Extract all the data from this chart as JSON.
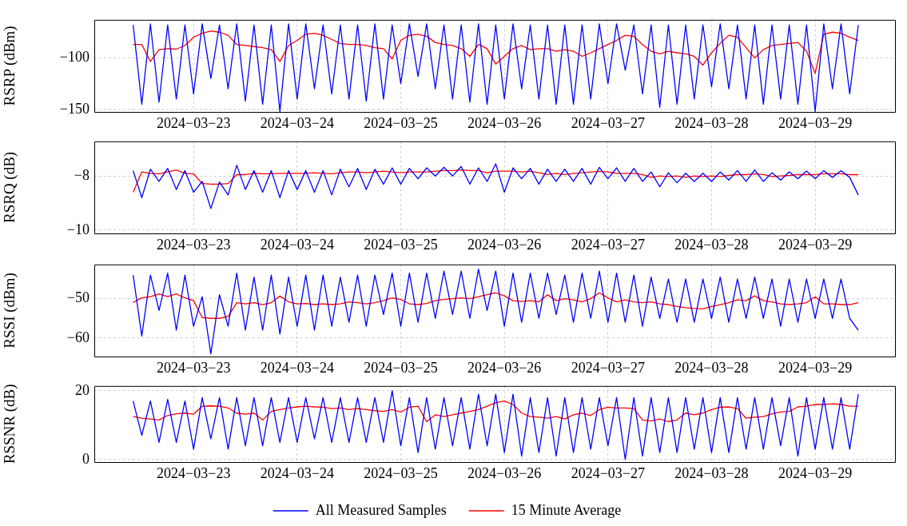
{
  "chart_data": [
    {
      "type": "line",
      "ylabel": "RSRP (dBm)",
      "marker": "none",
      "grid": true,
      "x": [
        "2024-03-22T10:00",
        "2024-03-22T12:00",
        "2024-03-22T14:00",
        "2024-03-22T16:00",
        "2024-03-22T18:00",
        "2024-03-22T20:00",
        "2024-03-22T22:00",
        "2024-03-23T00:00",
        "2024-03-23T02:00",
        "2024-03-23T04:00",
        "2024-03-23T06:00",
        "2024-03-23T08:00",
        "2024-03-23T10:00",
        "2024-03-23T12:00",
        "2024-03-23T14:00",
        "2024-03-23T16:00",
        "2024-03-23T18:00",
        "2024-03-23T20:00",
        "2024-03-23T22:00",
        "2024-03-24T00:00",
        "2024-03-24T02:00",
        "2024-03-24T04:00",
        "2024-03-24T06:00",
        "2024-03-24T08:00",
        "2024-03-24T10:00",
        "2024-03-24T12:00",
        "2024-03-24T14:00",
        "2024-03-24T16:00",
        "2024-03-24T18:00",
        "2024-03-24T20:00",
        "2024-03-24T22:00",
        "2024-03-25T00:00",
        "2024-03-25T02:00",
        "2024-03-25T04:00",
        "2024-03-25T06:00",
        "2024-03-25T08:00",
        "2024-03-25T10:00",
        "2024-03-25T12:00",
        "2024-03-25T14:00",
        "2024-03-25T16:00",
        "2024-03-25T18:00",
        "2024-03-25T20:00",
        "2024-03-25T22:00",
        "2024-03-26T00:00",
        "2024-03-26T02:00",
        "2024-03-26T04:00",
        "2024-03-26T06:00",
        "2024-03-26T08:00",
        "2024-03-26T10:00",
        "2024-03-26T12:00",
        "2024-03-26T14:00",
        "2024-03-26T16:00",
        "2024-03-26T18:00",
        "2024-03-26T20:00",
        "2024-03-26T22:00",
        "2024-03-27T00:00",
        "2024-03-27T02:00",
        "2024-03-27T04:00",
        "2024-03-27T06:00",
        "2024-03-27T08:00",
        "2024-03-27T10:00",
        "2024-03-27T12:00",
        "2024-03-27T14:00",
        "2024-03-27T16:00",
        "2024-03-27T18:00",
        "2024-03-27T20:00",
        "2024-03-27T22:00",
        "2024-03-28T00:00",
        "2024-03-28T02:00",
        "2024-03-28T04:00",
        "2024-03-28T06:00",
        "2024-03-28T08:00",
        "2024-03-28T10:00",
        "2024-03-28T12:00",
        "2024-03-28T14:00",
        "2024-03-28T16:00",
        "2024-03-28T18:00",
        "2024-03-28T20:00",
        "2024-03-28T22:00",
        "2024-03-29T00:00",
        "2024-03-29T02:00",
        "2024-03-29T04:00",
        "2024-03-29T06:00",
        "2024-03-29T08:00",
        "2024-03-29T10:00"
      ],
      "xlim": [
        "2024-03-22T01:00",
        "2024-03-29T18:30"
      ],
      "xticks": [
        {
          "value": "2024-03-23",
          "label": "2024−03−23"
        },
        {
          "value": "2024-03-24",
          "label": "2024−03−24"
        },
        {
          "value": "2024-03-25",
          "label": "2024−03−25"
        },
        {
          "value": "2024-03-26",
          "label": "2024−03−26"
        },
        {
          "value": "2024-03-27",
          "label": "2024−03−27"
        },
        {
          "value": "2024-03-28",
          "label": "2024−03−28"
        },
        {
          "value": "2024-03-29",
          "label": "2024−03−29"
        }
      ],
      "ylim": [
        -152.5,
        -63
      ],
      "yticks": [
        {
          "value": -150,
          "label": "−150"
        },
        {
          "value": -100,
          "label": "−100"
        }
      ],
      "series": [
        {
          "color": "#0000ff",
          "values": [
            -68,
            -145,
            -67,
            -143,
            -68,
            -140,
            -68,
            -135,
            -67,
            -120,
            -68,
            -130,
            -67,
            -142,
            -68,
            -145,
            -68,
            -152,
            -67,
            -140,
            -67,
            -130,
            -68,
            -135,
            -68,
            -140,
            -68,
            -142,
            -67,
            -140,
            -68,
            -125,
            -67,
            -118,
            -67,
            -130,
            -68,
            -140,
            -68,
            -143,
            -67,
            -145,
            -68,
            -140,
            -67,
            -130,
            -68,
            -140,
            -68,
            -145,
            -68,
            -145,
            -68,
            -140,
            -67,
            -125,
            -67,
            -112,
            -68,
            -135,
            -68,
            -148,
            -68,
            -145,
            -68,
            -140,
            -68,
            -128,
            -67,
            -130,
            -68,
            -140,
            -68,
            -145,
            -68,
            -140,
            -68,
            -145,
            -68,
            -152,
            -67,
            -130,
            -67,
            -135,
            -68
          ]
        },
        {
          "color": "#ff0000",
          "values": [
            -87,
            -87,
            -103.5,
            -92,
            -91,
            -91.5,
            -88,
            -80,
            -76,
            -74,
            -75,
            -78,
            -87,
            -88,
            -89,
            -90,
            -92,
            -103.5,
            -88,
            -83,
            -77,
            -76,
            -78,
            -82,
            -86,
            -87,
            -87,
            -88,
            -90,
            -91,
            -101,
            -83,
            -78,
            -77,
            -79,
            -85,
            -87,
            -88,
            -91,
            -98.5,
            -87,
            -91,
            -106,
            -98.5,
            -91,
            -88,
            -92,
            -91,
            -91,
            -93.5,
            -92,
            -93.5,
            -98.5,
            -95,
            -91,
            -87,
            -83,
            -78,
            -79,
            -87,
            -93.5,
            -96,
            -93.5,
            -95,
            -96,
            -98.5,
            -107,
            -95,
            -86,
            -78,
            -80,
            -90,
            -100,
            -92,
            -88,
            -87,
            -86,
            -85,
            -93.5,
            -115,
            -77,
            -75,
            -76,
            -80,
            -83
          ]
        }
      ]
    },
    {
      "type": "line",
      "ylabel": "RSRQ (dB)",
      "marker": "none",
      "grid": true,
      "x": [
        "2024-03-22T10:00",
        "2024-03-22T12:00",
        "2024-03-22T14:00",
        "2024-03-22T16:00",
        "2024-03-22T18:00",
        "2024-03-22T20:00",
        "2024-03-22T22:00",
        "2024-03-23T00:00",
        "2024-03-23T02:00",
        "2024-03-23T04:00",
        "2024-03-23T06:00",
        "2024-03-23T08:00",
        "2024-03-23T10:00",
        "2024-03-23T12:00",
        "2024-03-23T14:00",
        "2024-03-23T16:00",
        "2024-03-23T18:00",
        "2024-03-23T20:00",
        "2024-03-23T22:00",
        "2024-03-24T00:00",
        "2024-03-24T02:00",
        "2024-03-24T04:00",
        "2024-03-24T06:00",
        "2024-03-24T08:00",
        "2024-03-24T10:00",
        "2024-03-24T12:00",
        "2024-03-24T14:00",
        "2024-03-24T16:00",
        "2024-03-24T18:00",
        "2024-03-24T20:00",
        "2024-03-24T22:00",
        "2024-03-25T00:00",
        "2024-03-25T02:00",
        "2024-03-25T04:00",
        "2024-03-25T06:00",
        "2024-03-25T08:00",
        "2024-03-25T10:00",
        "2024-03-25T12:00",
        "2024-03-25T14:00",
        "2024-03-25T16:00",
        "2024-03-25T18:00",
        "2024-03-25T20:00",
        "2024-03-25T22:00",
        "2024-03-26T00:00",
        "2024-03-26T02:00",
        "2024-03-26T04:00",
        "2024-03-26T06:00",
        "2024-03-26T08:00",
        "2024-03-26T10:00",
        "2024-03-26T12:00",
        "2024-03-26T14:00",
        "2024-03-26T16:00",
        "2024-03-26T18:00",
        "2024-03-26T20:00",
        "2024-03-26T22:00",
        "2024-03-27T00:00",
        "2024-03-27T02:00",
        "2024-03-27T04:00",
        "2024-03-27T06:00",
        "2024-03-27T08:00",
        "2024-03-27T10:00",
        "2024-03-27T12:00",
        "2024-03-27T14:00",
        "2024-03-27T16:00",
        "2024-03-27T18:00",
        "2024-03-27T20:00",
        "2024-03-27T22:00",
        "2024-03-28T00:00",
        "2024-03-28T02:00",
        "2024-03-28T04:00",
        "2024-03-28T06:00",
        "2024-03-28T08:00",
        "2024-03-28T10:00",
        "2024-03-28T12:00",
        "2024-03-28T14:00",
        "2024-03-28T16:00",
        "2024-03-28T18:00",
        "2024-03-28T20:00",
        "2024-03-28T22:00",
        "2024-03-29T00:00",
        "2024-03-29T02:00",
        "2024-03-29T04:00",
        "2024-03-29T06:00",
        "2024-03-29T08:00",
        "2024-03-29T10:00"
      ],
      "xlim": [
        "2024-03-22T01:00",
        "2024-03-29T18:30"
      ],
      "xticks": [
        {
          "value": "2024-03-23",
          "label": "2024−03−23"
        },
        {
          "value": "2024-03-24",
          "label": "2024−03−24"
        },
        {
          "value": "2024-03-25",
          "label": "2024−03−25"
        },
        {
          "value": "2024-03-26",
          "label": "2024−03−26"
        },
        {
          "value": "2024-03-27",
          "label": "2024−03−27"
        },
        {
          "value": "2024-03-28",
          "label": "2024−03−28"
        },
        {
          "value": "2024-03-29",
          "label": "2024−03−29"
        }
      ],
      "ylim": [
        -10.12,
        -6.72
      ],
      "yticks": [
        {
          "value": -10,
          "label": "−10"
        },
        {
          "value": -8,
          "label": "−8"
        }
      ],
      "series": [
        {
          "color": "#0000ff",
          "values": [
            -7.8,
            -8.8,
            -7.75,
            -8.2,
            -7.72,
            -8.5,
            -7.8,
            -8.6,
            -8.2,
            -9.2,
            -8.22,
            -8.7,
            -7.6,
            -8.5,
            -7.8,
            -8.6,
            -7.8,
            -8.8,
            -7.8,
            -8.5,
            -7.8,
            -8.6,
            -7.8,
            -8.7,
            -7.75,
            -8.4,
            -7.72,
            -8.5,
            -7.75,
            -8.3,
            -7.7,
            -8.3,
            -7.72,
            -8.1,
            -7.7,
            -8,
            -7.68,
            -8,
            -7.65,
            -8.3,
            -7.7,
            -8.2,
            -7.55,
            -8.6,
            -7.7,
            -8.1,
            -7.72,
            -8.3,
            -7.75,
            -8.2,
            -7.75,
            -8.2,
            -7.72,
            -8.3,
            -7.68,
            -8.1,
            -7.7,
            -8.2,
            -7.72,
            -8.2,
            -7.85,
            -8.4,
            -7.88,
            -8.25,
            -7.9,
            -8.2,
            -7.9,
            -8.2,
            -7.85,
            -8.15,
            -7.8,
            -8.2,
            -7.78,
            -8.2,
            -7.88,
            -8.15,
            -7.85,
            -8.1,
            -7.82,
            -8.1,
            -7.8,
            -8.05,
            -7.8,
            -8.05,
            -8.7
          ]
        },
        {
          "color": "#ff0000",
          "values": [
            -8.6,
            -7.85,
            -7.9,
            -7.92,
            -7.85,
            -7.78,
            -7.9,
            -7.92,
            -8.28,
            -8.3,
            -8.3,
            -8.28,
            -7.95,
            -7.95,
            -7.9,
            -7.92,
            -7.92,
            -7.9,
            -7.9,
            -7.9,
            -7.9,
            -7.88,
            -7.9,
            -7.92,
            -7.88,
            -7.85,
            -7.85,
            -7.88,
            -7.85,
            -7.82,
            -7.85,
            -7.88,
            -7.85,
            -7.85,
            -7.85,
            -7.82,
            -7.8,
            -7.8,
            -7.78,
            -7.8,
            -7.8,
            -7.88,
            -7.82,
            -7.82,
            -7.82,
            -7.85,
            -7.82,
            -7.88,
            -7.95,
            -7.9,
            -7.95,
            -7.9,
            -7.88,
            -7.85,
            -7.83,
            -7.85,
            -7.9,
            -7.9,
            -7.9,
            -7.95,
            -8.05,
            -8,
            -8.02,
            -8,
            -8.05,
            -8,
            -8.02,
            -8,
            -8.02,
            -7.98,
            -7.95,
            -7.95,
            -7.92,
            -7.95,
            -8.02,
            -8,
            -7.98,
            -7.95,
            -7.95,
            -7.95,
            -7.92,
            -7.92,
            -7.92,
            -7.95,
            -7.95
          ]
        }
      ]
    },
    {
      "type": "line",
      "ylabel": "RSSI (dBm)",
      "marker": "none",
      "grid": true,
      "x": [
        "2024-03-22T10:00",
        "2024-03-22T12:00",
        "2024-03-22T14:00",
        "2024-03-22T16:00",
        "2024-03-22T18:00",
        "2024-03-22T20:00",
        "2024-03-22T22:00",
        "2024-03-23T00:00",
        "2024-03-23T02:00",
        "2024-03-23T04:00",
        "2024-03-23T06:00",
        "2024-03-23T08:00",
        "2024-03-23T10:00",
        "2024-03-23T12:00",
        "2024-03-23T14:00",
        "2024-03-23T16:00",
        "2024-03-23T18:00",
        "2024-03-23T20:00",
        "2024-03-23T22:00",
        "2024-03-24T00:00",
        "2024-03-24T02:00",
        "2024-03-24T04:00",
        "2024-03-24T06:00",
        "2024-03-24T08:00",
        "2024-03-24T10:00",
        "2024-03-24T12:00",
        "2024-03-24T14:00",
        "2024-03-24T16:00",
        "2024-03-24T18:00",
        "2024-03-24T20:00",
        "2024-03-24T22:00",
        "2024-03-25T00:00",
        "2024-03-25T02:00",
        "2024-03-25T04:00",
        "2024-03-25T06:00",
        "2024-03-25T08:00",
        "2024-03-25T10:00",
        "2024-03-25T12:00",
        "2024-03-25T14:00",
        "2024-03-25T16:00",
        "2024-03-25T18:00",
        "2024-03-25T20:00",
        "2024-03-25T22:00",
        "2024-03-26T00:00",
        "2024-03-26T02:00",
        "2024-03-26T04:00",
        "2024-03-26T06:00",
        "2024-03-26T08:00",
        "2024-03-26T10:00",
        "2024-03-26T12:00",
        "2024-03-26T14:00",
        "2024-03-26T16:00",
        "2024-03-26T18:00",
        "2024-03-26T20:00",
        "2024-03-26T22:00",
        "2024-03-27T00:00",
        "2024-03-27T02:00",
        "2024-03-27T04:00",
        "2024-03-27T06:00",
        "2024-03-27T08:00",
        "2024-03-27T10:00",
        "2024-03-27T12:00",
        "2024-03-27T14:00",
        "2024-03-27T16:00",
        "2024-03-27T18:00",
        "2024-03-27T20:00",
        "2024-03-27T22:00",
        "2024-03-28T00:00",
        "2024-03-28T02:00",
        "2024-03-28T04:00",
        "2024-03-28T06:00",
        "2024-03-28T08:00",
        "2024-03-28T10:00",
        "2024-03-28T12:00",
        "2024-03-28T14:00",
        "2024-03-28T16:00",
        "2024-03-28T18:00",
        "2024-03-28T20:00",
        "2024-03-28T22:00",
        "2024-03-29T00:00",
        "2024-03-29T02:00",
        "2024-03-29T04:00",
        "2024-03-29T06:00",
        "2024-03-29T08:00",
        "2024-03-29T10:00"
      ],
      "xlim": [
        "2024-03-22T01:00",
        "2024-03-29T18:30"
      ],
      "xticks": [
        {
          "value": "2024-03-23",
          "label": "2024−03−23"
        },
        {
          "value": "2024-03-24",
          "label": "2024−03−24"
        },
        {
          "value": "2024-03-25",
          "label": "2024−03−25"
        },
        {
          "value": "2024-03-26",
          "label": "2024−03−26"
        },
        {
          "value": "2024-03-27",
          "label": "2024−03−27"
        },
        {
          "value": "2024-03-28",
          "label": "2024−03−28"
        },
        {
          "value": "2024-03-29",
          "label": "2024−03−29"
        }
      ],
      "ylim": [
        -64.7,
        -41.3
      ],
      "yticks": [
        {
          "value": -60,
          "label": "−60"
        },
        {
          "value": -50,
          "label": "−50"
        }
      ],
      "series": [
        {
          "color": "#0000ff",
          "values": [
            -44,
            -59.5,
            -44,
            -53,
            -43.5,
            -58,
            -44,
            -57,
            -49.5,
            -64,
            -49,
            -57,
            -43.5,
            -58,
            -44.5,
            -58,
            -44,
            -59,
            -44.5,
            -57,
            -44,
            -58,
            -44,
            -57,
            -44.5,
            -56,
            -44,
            -57,
            -44,
            -54,
            -43.5,
            -57,
            -43.5,
            -56,
            -43.5,
            -55,
            -43,
            -54,
            -43,
            -55,
            -42.5,
            -53,
            -43,
            -57,
            -43.5,
            -56,
            -43.5,
            -55,
            -43.5,
            -54,
            -44,
            -56,
            -43.5,
            -55,
            -43,
            -56,
            -43.5,
            -56,
            -44,
            -57,
            -44.5,
            -55,
            -45,
            -56,
            -45,
            -56,
            -45,
            -55,
            -44.5,
            -56,
            -45,
            -55,
            -44.5,
            -55,
            -45,
            -57,
            -45,
            -56,
            -45,
            -55,
            -45,
            -55,
            -45,
            -55,
            -58
          ]
        },
        {
          "color": "#ff0000",
          "values": [
            -51,
            -49.8,
            -49.5,
            -48.8,
            -49.5,
            -48.8,
            -49.8,
            -50.5,
            -54.8,
            -55,
            -55,
            -54.5,
            -51,
            -51.3,
            -51,
            -51.5,
            -51,
            -49.3,
            -50.8,
            -51.3,
            -51.2,
            -51.5,
            -51.3,
            -51.5,
            -51.3,
            -50.8,
            -51,
            -51.3,
            -51,
            -50.5,
            -49.8,
            -50.2,
            -51.3,
            -51.5,
            -51.2,
            -50.5,
            -50.2,
            -50,
            -49.8,
            -50,
            -49.5,
            -49,
            -48.5,
            -49.3,
            -50.5,
            -50.7,
            -50.5,
            -50.8,
            -49,
            -50.5,
            -50,
            -50.3,
            -50.8,
            -50,
            -48.5,
            -49.8,
            -50.8,
            -50.3,
            -50.8,
            -51,
            -50.8,
            -51.3,
            -51.5,
            -52,
            -52.3,
            -52.5,
            -52.6,
            -52,
            -51.5,
            -51,
            -50.3,
            -50.5,
            -49.3,
            -50.5,
            -50.8,
            -51.3,
            -51.5,
            -51.3,
            -51,
            -49.5,
            -51.3,
            -51.3,
            -51.5,
            -51.5,
            -51
          ]
        }
      ]
    },
    {
      "type": "line",
      "ylabel": "RSSNR (dB)",
      "marker": "none",
      "grid": true,
      "legend": "bottom",
      "x": [
        "2024-03-22T10:00",
        "2024-03-22T12:00",
        "2024-03-22T14:00",
        "2024-03-22T16:00",
        "2024-03-22T18:00",
        "2024-03-22T20:00",
        "2024-03-22T22:00",
        "2024-03-23T00:00",
        "2024-03-23T02:00",
        "2024-03-23T04:00",
        "2024-03-23T06:00",
        "2024-03-23T08:00",
        "2024-03-23T10:00",
        "2024-03-23T12:00",
        "2024-03-23T14:00",
        "2024-03-23T16:00",
        "2024-03-23T18:00",
        "2024-03-23T20:00",
        "2024-03-23T22:00",
        "2024-03-24T00:00",
        "2024-03-24T02:00",
        "2024-03-24T04:00",
        "2024-03-24T06:00",
        "2024-03-24T08:00",
        "2024-03-24T10:00",
        "2024-03-24T12:00",
        "2024-03-24T14:00",
        "2024-03-24T16:00",
        "2024-03-24T18:00",
        "2024-03-24T20:00",
        "2024-03-24T22:00",
        "2024-03-25T00:00",
        "2024-03-25T02:00",
        "2024-03-25T04:00",
        "2024-03-25T06:00",
        "2024-03-25T08:00",
        "2024-03-25T10:00",
        "2024-03-25T12:00",
        "2024-03-25T14:00",
        "2024-03-25T16:00",
        "2024-03-25T18:00",
        "2024-03-25T20:00",
        "2024-03-25T22:00",
        "2024-03-26T00:00",
        "2024-03-26T02:00",
        "2024-03-26T04:00",
        "2024-03-26T06:00",
        "2024-03-26T08:00",
        "2024-03-26T10:00",
        "2024-03-26T12:00",
        "2024-03-26T14:00",
        "2024-03-26T16:00",
        "2024-03-26T18:00",
        "2024-03-26T20:00",
        "2024-03-26T22:00",
        "2024-03-27T00:00",
        "2024-03-27T02:00",
        "2024-03-27T04:00",
        "2024-03-27T06:00",
        "2024-03-27T08:00",
        "2024-03-27T10:00",
        "2024-03-27T12:00",
        "2024-03-27T14:00",
        "2024-03-27T16:00",
        "2024-03-27T18:00",
        "2024-03-27T20:00",
        "2024-03-27T22:00",
        "2024-03-28T00:00",
        "2024-03-28T02:00",
        "2024-03-28T04:00",
        "2024-03-28T06:00",
        "2024-03-28T08:00",
        "2024-03-28T10:00",
        "2024-03-28T12:00",
        "2024-03-28T14:00",
        "2024-03-28T16:00",
        "2024-03-28T18:00",
        "2024-03-28T20:00",
        "2024-03-28T22:00",
        "2024-03-29T00:00",
        "2024-03-29T02:00",
        "2024-03-29T04:00",
        "2024-03-29T06:00",
        "2024-03-29T08:00",
        "2024-03-29T10:00"
      ],
      "xlim": [
        "2024-03-22T01:00",
        "2024-03-29T18:30"
      ],
      "xticks": [
        {
          "value": "2024-03-23",
          "label": "2024−03−23"
        },
        {
          "value": "2024-03-24",
          "label": "2024−03−24"
        },
        {
          "value": "2024-03-25",
          "label": "2024−03−25"
        },
        {
          "value": "2024-03-26",
          "label": "2024−03−26"
        },
        {
          "value": "2024-03-27",
          "label": "2024−03−27"
        },
        {
          "value": "2024-03-28",
          "label": "2024−03−28"
        },
        {
          "value": "2024-03-29",
          "label": "2024−03−29"
        }
      ],
      "ylim": [
        -0.75,
        21.4
      ],
      "yticks": [
        0,
        20
      ],
      "series": [
        {
          "name": "All Measured Samples",
          "color": "#0000ff",
          "values": [
            17,
            7,
            17,
            5,
            17.5,
            5,
            17,
            3,
            18,
            6,
            18,
            3,
            18,
            4,
            18,
            4,
            18,
            5,
            18,
            5,
            18,
            6,
            18,
            5,
            18,
            5,
            18,
            5,
            18,
            5,
            20,
            4,
            18,
            2,
            18,
            3,
            18,
            4,
            18,
            3,
            19,
            4,
            19,
            2,
            19,
            1,
            18,
            2,
            18,
            1,
            18,
            2,
            18,
            3,
            18,
            4,
            18,
            0,
            18,
            1,
            18,
            2,
            18,
            2,
            18,
            3,
            18,
            2,
            18,
            2,
            18,
            3,
            18,
            3,
            18,
            4,
            18,
            1,
            18,
            3,
            18,
            3,
            18,
            3,
            19
          ]
        },
        {
          "name": "15 Minute Average",
          "color": "#ff0000",
          "values": [
            12.5,
            12,
            11.8,
            11.5,
            12.8,
            13.3,
            13.5,
            13.2,
            15.5,
            15.6,
            15.5,
            15,
            13.5,
            13.2,
            13.5,
            11.5,
            14,
            14.5,
            15,
            15.3,
            15.5,
            15.3,
            15.2,
            14.8,
            15,
            14.5,
            14.8,
            14.5,
            14.2,
            14,
            14.5,
            13.8,
            15.2,
            15.5,
            11,
            13,
            12.5,
            13,
            13.5,
            14,
            14.5,
            15.5,
            16.5,
            17,
            16,
            13.5,
            12.5,
            12.3,
            12,
            12.5,
            11.8,
            13,
            13.5,
            12.8,
            14.5,
            15.2,
            15,
            15,
            14.8,
            11.5,
            11.2,
            11.8,
            11,
            11.5,
            13.5,
            13,
            13.5,
            14.5,
            15.2,
            15.3,
            14.8,
            12,
            12.3,
            12.5,
            13.3,
            13.8,
            14,
            15.3,
            15.5,
            16,
            16,
            16.2,
            16,
            15.5,
            15.5
          ]
        }
      ]
    }
  ]
}
